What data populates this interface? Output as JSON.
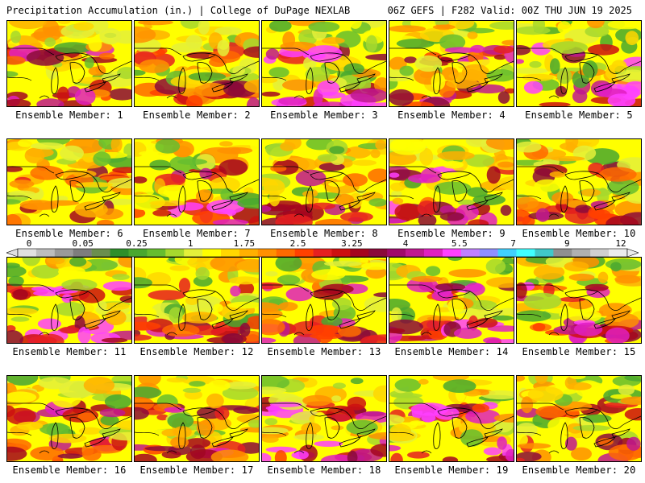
{
  "header": {
    "left_title": "Precipitation Accumulation (in.) | College of DuPage NEXLAB",
    "right_title": "06Z GEFS | F282 Valid: 00Z THU JUN 19 2025"
  },
  "legend": {
    "tick_labels": [
      "0",
      "0.05",
      "0.25",
      "1",
      "1.75",
      "2.5",
      "3.25",
      "4",
      "5.5",
      "7",
      "9",
      "12"
    ],
    "colors": [
      "#e0e0e0",
      "#bdbdbd",
      "#9a9a9a",
      "#7d7d7d",
      "#6b8f4e",
      "#2f8f2a",
      "#49a82f",
      "#66bd2f",
      "#a6d82e",
      "#e4f03a",
      "#ffff00",
      "#ffd700",
      "#ffb000",
      "#ff9000",
      "#ff6a00",
      "#ff4000",
      "#e62020",
      "#cc1010",
      "#a5061e",
      "#8b0a3a",
      "#a00a6a",
      "#c0188f",
      "#e020c0",
      "#ff40ff",
      "#c080ff",
      "#8f8fff",
      "#40d0ff",
      "#40ffff",
      "#40c8c8",
      "#909090",
      "#b0b0b0",
      "#d0d0d0",
      "#ececec"
    ]
  },
  "panels": [
    {
      "caption": "Ensemble Member: 1",
      "wetness": 0.55
    },
    {
      "caption": "Ensemble Member: 2",
      "wetness": 0.45
    },
    {
      "caption": "Ensemble Member: 3",
      "wetness": 0.75
    },
    {
      "caption": "Ensemble Member: 4",
      "wetness": 0.55
    },
    {
      "caption": "Ensemble Member: 5",
      "wetness": 0.8
    },
    {
      "caption": "Ensemble Member: 6",
      "wetness": 0.45
    },
    {
      "caption": "Ensemble Member: 7",
      "wetness": 0.7
    },
    {
      "caption": "Ensemble Member: 8",
      "wetness": 0.5
    },
    {
      "caption": "Ensemble Member: 9",
      "wetness": 0.65
    },
    {
      "caption": "Ensemble Member: 10",
      "wetness": 0.5
    },
    {
      "caption": "Ensemble Member: 11",
      "wetness": 0.75
    },
    {
      "caption": "Ensemble Member: 12",
      "wetness": 0.6
    },
    {
      "caption": "Ensemble Member: 13",
      "wetness": 0.6
    },
    {
      "caption": "Ensemble Member: 14",
      "wetness": 0.7
    },
    {
      "caption": "Ensemble Member: 15",
      "wetness": 0.6
    },
    {
      "caption": "Ensemble Member: 16",
      "wetness": 0.55
    },
    {
      "caption": "Ensemble Member: 17",
      "wetness": 0.55
    },
    {
      "caption": "Ensemble Member: 18",
      "wetness": 0.7
    },
    {
      "caption": "Ensemble Member: 19",
      "wetness": 0.7
    },
    {
      "caption": "Ensemble Member: 20",
      "wetness": 0.5
    }
  ]
}
